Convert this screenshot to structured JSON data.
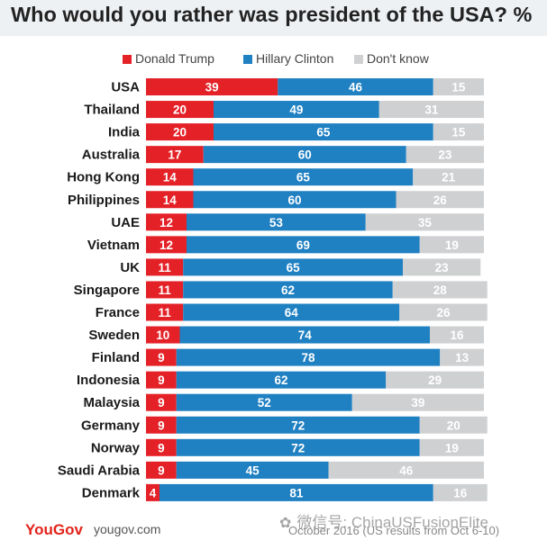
{
  "title": "Who would you rather was president of the USA? %",
  "colors": {
    "trump": "#e42127",
    "clinton": "#1f80c2",
    "dont_know": "#cfd0d2",
    "title_bar": "#eef1f4"
  },
  "legend": [
    {
      "label": "Donald Trump",
      "color": "#e42127"
    },
    {
      "label": "Hillary Clinton",
      "color": "#1f80c2"
    },
    {
      "label": "Don't know",
      "color": "#cfd0d2"
    }
  ],
  "chart_data": {
    "type": "bar",
    "orientation": "horizontal",
    "stacked": true,
    "title": "Who would you rather was president of the USA? %",
    "xlabel": "",
    "ylabel": "",
    "xlim": [
      0,
      100
    ],
    "grid": false,
    "legend_position": "top",
    "categories": [
      "USA",
      "Thailand",
      "India",
      "Australia",
      "Hong Kong",
      "Philippines",
      "UAE",
      "Vietnam",
      "UK",
      "Singapore",
      "France",
      "Sweden",
      "Finland",
      "Indonesia",
      "Malaysia",
      "Germany",
      "Norway",
      "Saudi Arabia",
      "Denmark"
    ],
    "series": [
      {
        "name": "Donald Trump",
        "values": [
          39,
          20,
          20,
          17,
          14,
          14,
          12,
          12,
          11,
          11,
          11,
          10,
          9,
          9,
          9,
          9,
          9,
          9,
          4
        ]
      },
      {
        "name": "Hillary Clinton",
        "values": [
          46,
          49,
          65,
          60,
          65,
          60,
          53,
          69,
          65,
          62,
          64,
          74,
          78,
          62,
          52,
          72,
          72,
          45,
          81
        ]
      },
      {
        "name": "Don't know",
        "values": [
          15,
          31,
          15,
          23,
          21,
          26,
          35,
          19,
          23,
          28,
          26,
          16,
          13,
          29,
          39,
          20,
          19,
          46,
          16
        ]
      }
    ]
  },
  "footer": {
    "logo": "YouGov",
    "site": "yougov.com",
    "note": "October 2016 (US results from Oct 6-10)"
  },
  "watermark": {
    "text": "微信号: ChinaUSFusionElite"
  }
}
